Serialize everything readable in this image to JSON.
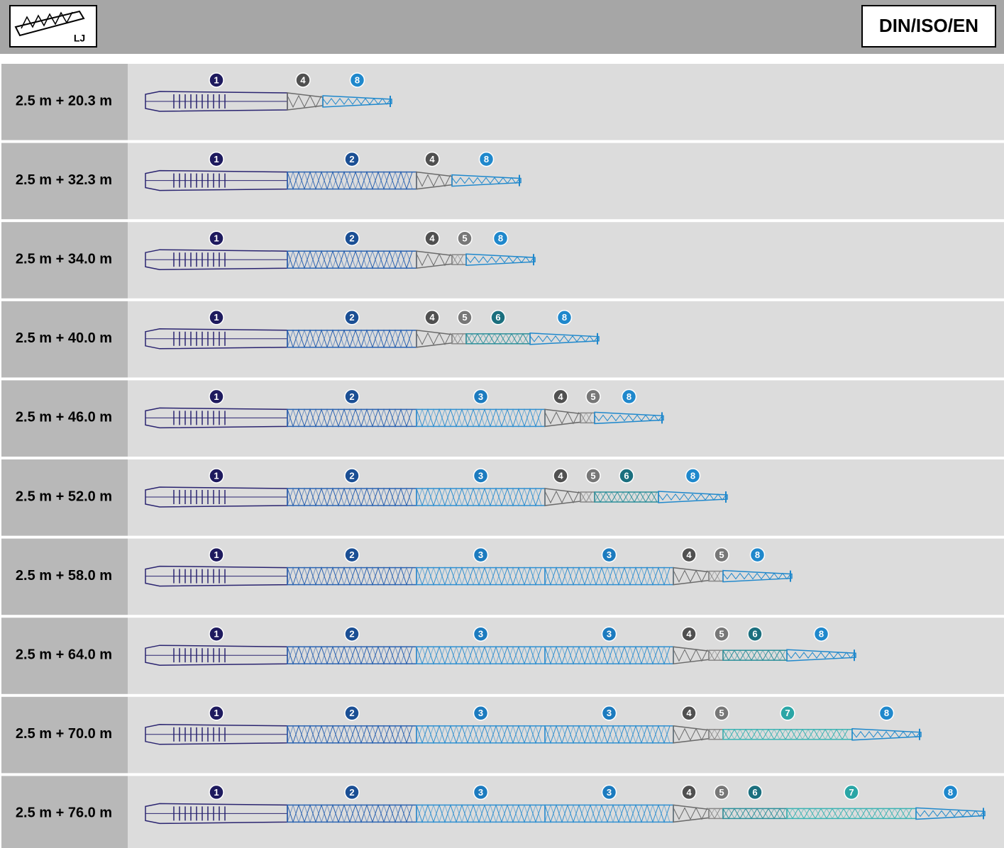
{
  "header": {
    "icon_label": "LJ",
    "standard": "DIN/ISO/EN"
  },
  "rows": [
    {
      "label": "2.5 m + 20.3 m",
      "sections": [
        "1",
        "4",
        "8"
      ]
    },
    {
      "label": "2.5 m + 32.3 m",
      "sections": [
        "1",
        "2",
        "4",
        "8"
      ]
    },
    {
      "label": "2.5 m + 34.0 m",
      "sections": [
        "1",
        "2",
        "4",
        "5",
        "8"
      ]
    },
    {
      "label": "2.5 m + 40.0 m",
      "sections": [
        "1",
        "2",
        "4",
        "5",
        "6",
        "8"
      ]
    },
    {
      "label": "2.5 m + 46.0 m",
      "sections": [
        "1",
        "2",
        "3",
        "4",
        "5",
        "8"
      ]
    },
    {
      "label": "2.5 m + 52.0 m",
      "sections": [
        "1",
        "2",
        "3",
        "4",
        "5",
        "6",
        "8"
      ]
    },
    {
      "label": "2.5 m + 58.0 m",
      "sections": [
        "1",
        "2",
        "3",
        "3",
        "4",
        "5",
        "8"
      ]
    },
    {
      "label": "2.5 m + 64.0 m",
      "sections": [
        "1",
        "2",
        "3",
        "3",
        "4",
        "5",
        "6",
        "8"
      ]
    },
    {
      "label": "2.5 m + 70.0 m",
      "sections": [
        "1",
        "2",
        "3",
        "3",
        "4",
        "5",
        "7",
        "8"
      ]
    },
    {
      "label": "2.5 m + 76.0 m",
      "sections": [
        "1",
        "2",
        "3",
        "3",
        "4",
        "5",
        "6",
        "7",
        "8"
      ]
    }
  ]
}
